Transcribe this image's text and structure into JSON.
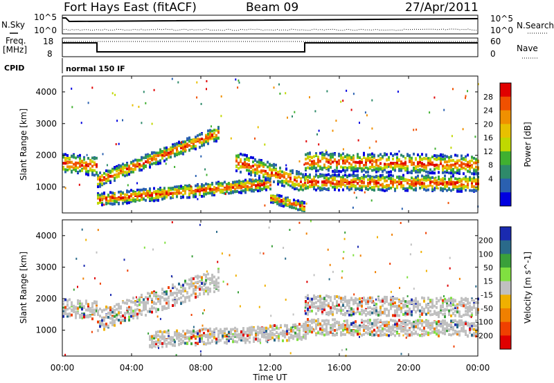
{
  "header": {
    "station": "Fort Hays East (fitACF)",
    "beam": "Beam 09",
    "date": "27/Apr/2011"
  },
  "panels": {
    "nsky": {
      "left_label": "N.Sky",
      "right_label": "N.Search",
      "left_ticks": [
        "10^5",
        "10^0"
      ],
      "right_ticks": [
        "10^5",
        "10^0"
      ]
    },
    "freq": {
      "left_label_1": "Freq.",
      "left_label_2": "[MHz]",
      "left_ticks": [
        "18",
        "8"
      ],
      "right_label": "Nave",
      "right_ticks": [
        "60",
        "0"
      ]
    },
    "cpid": {
      "label": "CPID",
      "value": "normal 150 IF"
    }
  },
  "x_axis": {
    "label": "Time UT",
    "ticks": [
      "00:00",
      "04:00",
      "08:00",
      "12:00",
      "16:00",
      "20:00",
      "00:00"
    ]
  },
  "chart_data": [
    {
      "type": "heatmap",
      "name": "power",
      "ylabel": "Slant Range [km]",
      "yticks": [
        1000,
        2000,
        3000,
        4000
      ],
      "ylim": [
        180,
        4500
      ],
      "xlim_hours": [
        0,
        24
      ],
      "colorbar_label": "Power [dB]",
      "colorbar_ticks": [
        "28",
        "24",
        "20",
        "16",
        "12",
        "8",
        "4"
      ],
      "colorbar_colors": [
        "#e00000",
        "#f05000",
        "#f09000",
        "#e8c000",
        "#c0d800",
        "#40b030",
        "#2e8a6a",
        "#2a60b0",
        "#0000e0"
      ],
      "bands": [
        {
          "start_h": 0.0,
          "end_h": 2.0,
          "r0": 1750,
          "r1": 1650,
          "w": 300
        },
        {
          "start_h": 2.0,
          "end_h": 9.0,
          "r0": 1200,
          "r1": 2700,
          "w": 220
        },
        {
          "start_h": 2.0,
          "end_h": 12.0,
          "r0": 600,
          "r1": 1100,
          "w": 200
        },
        {
          "start_h": 10.0,
          "end_h": 14.0,
          "r0": 1800,
          "r1": 1100,
          "w": 300
        },
        {
          "start_h": 12.0,
          "end_h": 14.0,
          "r0": 650,
          "r1": 350,
          "w": 150
        },
        {
          "start_h": 14.0,
          "end_h": 24.0,
          "r0": 1800,
          "r1": 1700,
          "w": 300
        },
        {
          "start_h": 14.0,
          "end_h": 24.0,
          "r0": 1150,
          "r1": 1100,
          "w": 250
        }
      ]
    },
    {
      "type": "heatmap",
      "name": "velocity",
      "ylabel": "Slant Range [km]",
      "yticks": [
        1000,
        2000,
        3000,
        4000
      ],
      "ylim": [
        180,
        4500
      ],
      "xlim_hours": [
        0,
        24
      ],
      "colorbar_label": "Velocity [m s^-1]",
      "colorbar_ticks": [
        "200",
        "100",
        "50",
        "15",
        "-15",
        "-50",
        "-100",
        "-200"
      ],
      "colorbar_colors": [
        "#1a2ab0",
        "#2a6a8a",
        "#3aa03a",
        "#80e040",
        "#c0c0c0",
        "#f0b000",
        "#f08000",
        "#f04000",
        "#e00000"
      ],
      "bands": [
        {
          "start_h": 0.0,
          "end_h": 2.0,
          "r0": 1700,
          "r1": 1650,
          "w": 300
        },
        {
          "start_h": 2.0,
          "end_h": 9.0,
          "r0": 1300,
          "r1": 2600,
          "w": 350
        },
        {
          "start_h": 5.0,
          "end_h": 14.0,
          "r0": 700,
          "r1": 950,
          "w": 250
        },
        {
          "start_h": 14.0,
          "end_h": 24.0,
          "r0": 1800,
          "r1": 1700,
          "w": 300
        },
        {
          "start_h": 14.0,
          "end_h": 24.0,
          "r0": 1100,
          "r1": 1050,
          "w": 250
        }
      ]
    }
  ]
}
